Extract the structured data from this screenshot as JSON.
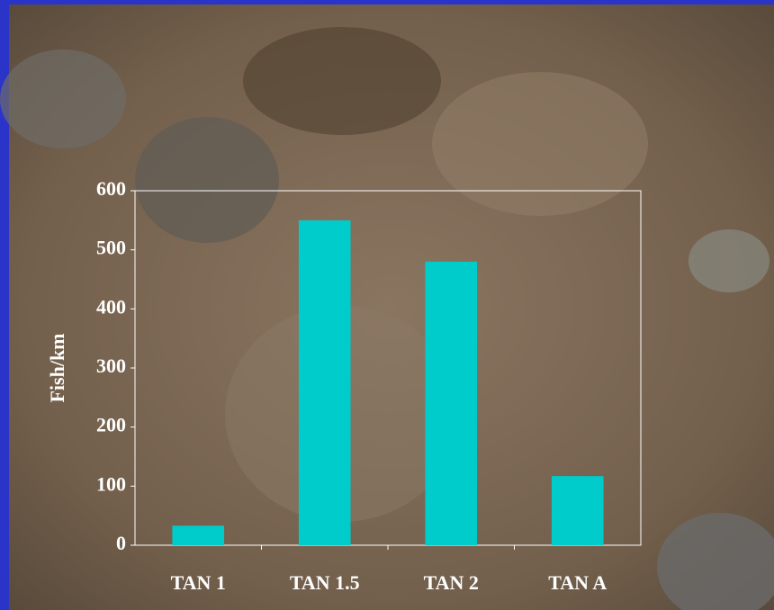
{
  "chart_data": {
    "type": "bar",
    "y_label": "Fish/km",
    "categories": [
      "TAN 1",
      "TAN 1.5",
      "TAN 2",
      "TAN A"
    ],
    "values": [
      33,
      550,
      480,
      117
    ],
    "color": "#00cccc",
    "ylim": [
      0,
      600
    ],
    "yticks": [
      0,
      100,
      200,
      300,
      400,
      500,
      600
    ]
  }
}
